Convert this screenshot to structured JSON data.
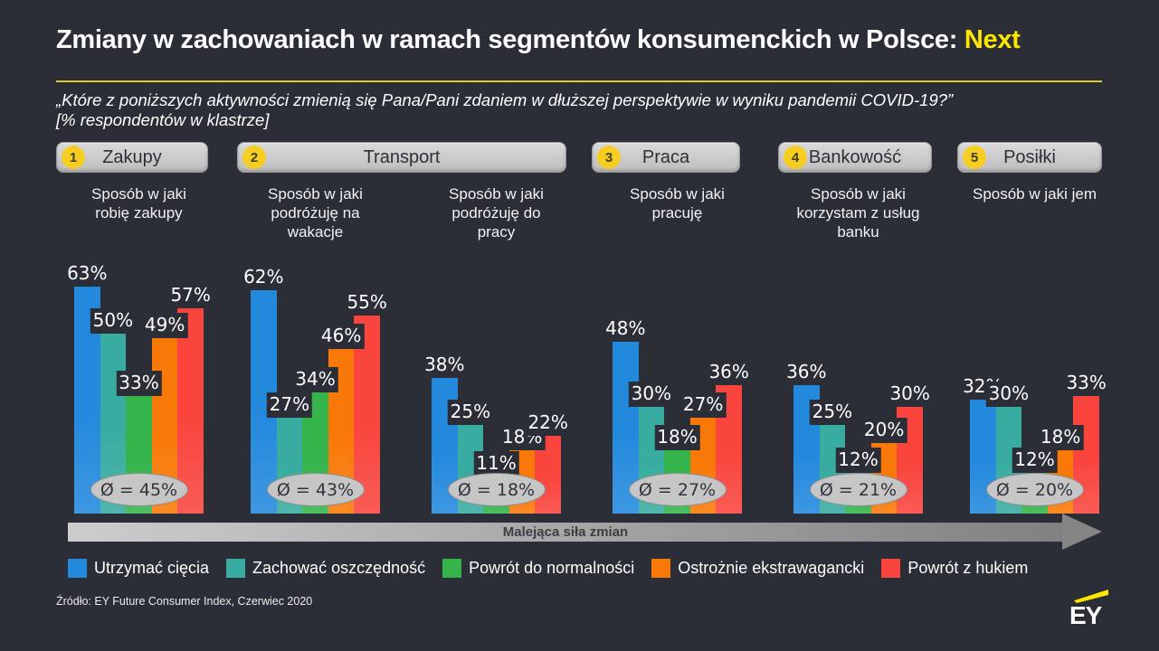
{
  "title": {
    "text": "Zmiany w zachowaniach w ramach segmentów konsumenckich w Polsce: ",
    "accent": "Next"
  },
  "subtitle_line1": "„Które z poniższych aktywności zmienią się Pana/Pani zdaniem w dłuższej perspektywie w wyniku pandemii COVID-19?”",
  "subtitle_line2": "[% respondentów w klastrze]",
  "segments": [
    {
      "number": "1",
      "label": "Zakupy"
    },
    {
      "number": "2",
      "label": "Transport"
    },
    {
      "number": "3",
      "label": "Praca"
    },
    {
      "number": "4",
      "label": "Bankowość"
    },
    {
      "number": "5",
      "label": "Posiłki"
    }
  ],
  "chart_data": {
    "type": "bar",
    "title": "Zmiany w zachowaniach w ramach segmentów konsumenckich w Polsce: Next",
    "unit": "%",
    "ylim": [
      0,
      65
    ],
    "grid": false,
    "legend_position": "bottom",
    "series": [
      {
        "name": "Utrzymać cięcia",
        "color": "#2389DD",
        "values": [
          63,
          62,
          38,
          48,
          36,
          32
        ]
      },
      {
        "name": "Zachować oszczędność",
        "color": "#38ACA0",
        "values": [
          50,
          27,
          25,
          30,
          25,
          30
        ]
      },
      {
        "name": "Powrót do normalności",
        "color": "#35B44C",
        "values": [
          33,
          34,
          11,
          18,
          12,
          12
        ]
      },
      {
        "name": "Ostrożnie ekstrawagancki",
        "color": "#F97908",
        "values": [
          49,
          46,
          18,
          27,
          20,
          18
        ]
      },
      {
        "name": "Powrót z hukiem",
        "color": "#F9453E",
        "values": [
          57,
          55,
          22,
          36,
          30,
          33
        ]
      }
    ],
    "groups": [
      {
        "label": "Sposób w jaki robię zakupy",
        "values": [
          63,
          50,
          33,
          49,
          57
        ],
        "value_labels": [
          "63%",
          "50%",
          "33%",
          "49%",
          "57%"
        ],
        "average": "Ø = 45%"
      },
      {
        "label": "Sposób w jaki podróżuję na wakacje",
        "values": [
          62,
          27,
          34,
          46,
          55
        ],
        "value_labels": [
          "62%",
          "27%",
          "34%",
          "46%",
          "55%"
        ],
        "average": "Ø = 43%"
      },
      {
        "label": "Sposób w jaki podróżuję do pracy",
        "values": [
          38,
          25,
          11,
          18,
          22
        ],
        "value_labels": [
          "38%",
          "25%",
          "11%",
          "18%",
          "22%"
        ],
        "average": "Ø = 18%"
      },
      {
        "label": "Sposób w jaki pracuję",
        "values": [
          48,
          30,
          18,
          27,
          36
        ],
        "value_labels": [
          "48%",
          "30%",
          "18%",
          "27%",
          "36%"
        ],
        "average": "Ø = 27%"
      },
      {
        "label": "Sposób w jaki korzystam z usług banku",
        "values": [
          36,
          25,
          12,
          20,
          30
        ],
        "value_labels": [
          "36%",
          "25%",
          "12%",
          "20%",
          "30%"
        ],
        "average": "Ø = 21%"
      },
      {
        "label": "Sposób w jaki jem",
        "values": [
          32,
          30,
          12,
          18,
          33
        ],
        "value_labels": [
          "32%",
          "30%",
          "12%",
          "18%",
          "33%"
        ],
        "average": "Ø = 20%"
      }
    ],
    "annotations": {
      "arrow_label": "Malejąca siła zmian"
    }
  },
  "arrow_label": "Malejąca siła zmian",
  "source": "Źródło: EY Future Consumer Index, Czerwiec 2020",
  "logo_text": "EY",
  "colors": {
    "background": "#2B2E37",
    "accent_yellow": "#FFE600",
    "badge_yellow": "#F6CD22",
    "pill_gray": "#C9C9C9",
    "ellipse_gray": "#C6C6C6",
    "arrow_gray": "#9A9A9A"
  }
}
